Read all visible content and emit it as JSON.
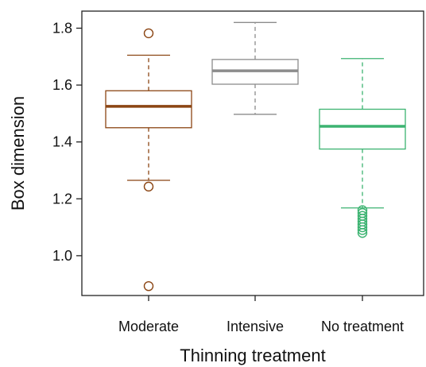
{
  "chart_data": {
    "type": "boxplot",
    "xlabel": "Thinning treatment",
    "ylabel": "Box dimension",
    "ylim": [
      0.86,
      1.86
    ],
    "yticks": [
      1.0,
      1.2,
      1.4,
      1.6,
      1.8
    ],
    "ytick_labels": [
      "1.0",
      "1.2",
      "1.4",
      "1.6",
      "1.8"
    ],
    "grid": false,
    "categories": [
      "Moderate",
      "Intensive",
      "No treatment"
    ],
    "boxes": [
      {
        "category": "Moderate",
        "color": "#8B4513",
        "whisker_low": 1.265,
        "q1": 1.45,
        "median": 1.525,
        "q3": 1.58,
        "whisker_high": 1.705,
        "outliers": [
          1.782,
          1.243,
          0.893
        ]
      },
      {
        "category": "Intensive",
        "color": "#8c8c8c",
        "whisker_low": 1.497,
        "q1": 1.603,
        "median": 1.65,
        "q3": 1.69,
        "whisker_high": 1.82,
        "outliers": []
      },
      {
        "category": "No treatment",
        "color": "#3cb371",
        "whisker_low": 1.168,
        "q1": 1.375,
        "median": 1.455,
        "q3": 1.515,
        "whisker_high": 1.693,
        "outliers": [
          1.16,
          1.15,
          1.14,
          1.13,
          1.12,
          1.11,
          1.1,
          1.09,
          1.08
        ]
      }
    ]
  }
}
